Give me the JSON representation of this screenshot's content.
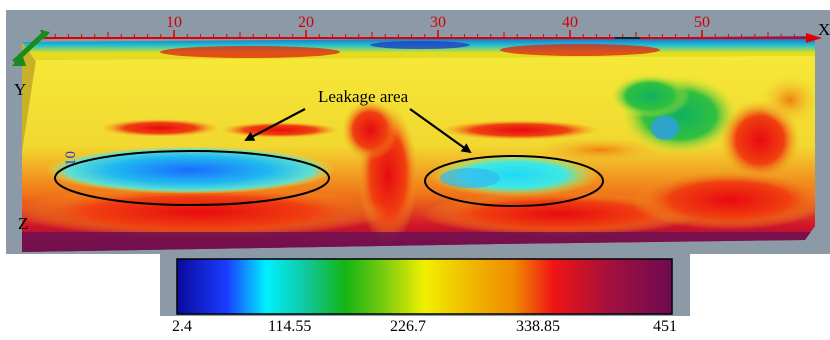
{
  "annotation": {
    "label": "Leakage area"
  },
  "axes": {
    "x_letter": "X",
    "y_letter": "Y",
    "z_letter": "Z",
    "x_tick_labels": [
      "10",
      "20",
      "30",
      "40",
      "50"
    ],
    "depth_tick_label": "10"
  },
  "colorbar": {
    "labels": [
      "2.4",
      "114.55",
      "226.7",
      "338.85",
      "451"
    ],
    "range": [
      2.4,
      451
    ]
  },
  "colors": {
    "low": "#0a0a9e",
    "cyan": "#00f0ff",
    "green": "#14b414",
    "yellow": "#f0f000",
    "orange": "#f08c00",
    "red": "#f01414",
    "high": "#6e0a50",
    "axis": "#e00000",
    "background_panel": "#8c9aa8"
  }
}
